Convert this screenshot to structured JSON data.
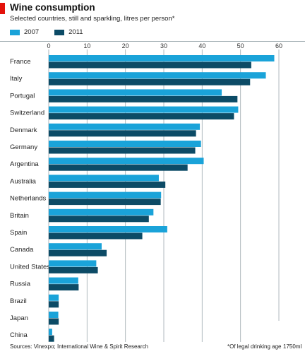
{
  "header": {
    "title": "Wine consumption",
    "subtitle": "Selected countries, still and sparkling, litres per person*"
  },
  "footer": {
    "source": "Sources: Vinexpo; International Wine & Spirit Research",
    "note": "*Of legal drinking age",
    "code": "1750ml"
  },
  "colors": {
    "accent": "#e3120b",
    "series_2007": "#1aa3d9",
    "series_2011": "#0c4b66",
    "grid": "#a9b3b8"
  },
  "chart_data": {
    "type": "bar",
    "orientation": "horizontal",
    "title": "Wine consumption",
    "subtitle": "Selected countries, still and sparkling, litres per person*",
    "xlim": [
      0,
      60
    ],
    "ticks": [
      0,
      10,
      20,
      30,
      40,
      50,
      60
    ],
    "grid": true,
    "legend_position": "top-left",
    "categories": [
      "France",
      "Italy",
      "Portugal",
      "Switzerland",
      "Denmark",
      "Germany",
      "Argentina",
      "Australia",
      "Netherlands",
      "Britain",
      "Spain",
      "Canada",
      "United States",
      "Russia",
      "Brazil",
      "Japan",
      "China"
    ],
    "series": [
      {
        "name": "2007",
        "color": "#1aa3d9",
        "values": [
          58.8,
          56.6,
          45.1,
          49.4,
          39.4,
          39.7,
          40.4,
          28.7,
          29.3,
          27.3,
          30.9,
          13.8,
          12.4,
          7.7,
          2.6,
          2.5,
          0.9
        ]
      },
      {
        "name": "2011",
        "color": "#0c4b66",
        "values": [
          52.8,
          52.5,
          49.2,
          48.3,
          38.4,
          38.2,
          36.2,
          30.4,
          29.2,
          26.1,
          24.4,
          15.1,
          12.8,
          7.8,
          2.6,
          2.6,
          1.4
        ]
      }
    ]
  }
}
